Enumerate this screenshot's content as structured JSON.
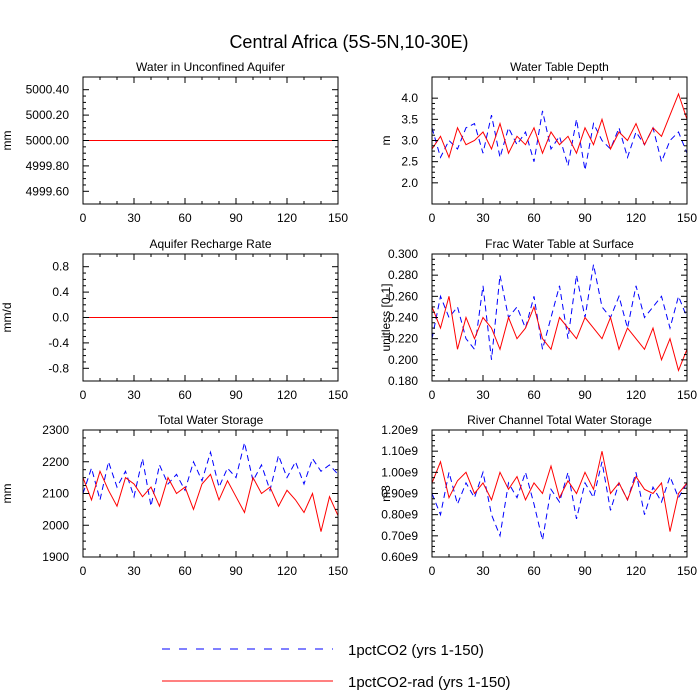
{
  "title": "Central Africa (5S-5N,10-30E)",
  "colors": {
    "series_a": "#0000ff",
    "series_b": "#ff0000"
  },
  "legend": {
    "placement": "bottom-center",
    "items": [
      {
        "label": "1pctCO2 (yrs 1-150)",
        "color": "#0000ff",
        "style": "dashed"
      },
      {
        "label": "1pctCO2-rad (yrs 1-150)",
        "color": "#ff0000",
        "style": "solid"
      }
    ]
  },
  "chart_data": [
    {
      "type": "line",
      "title": "Water in Unconfined Aquifer",
      "ylabel": "mm",
      "xlim": [
        0,
        150
      ],
      "ylim": [
        4999.5,
        5000.5
      ],
      "xticks": [
        0,
        30,
        60,
        90,
        120,
        150
      ],
      "yticks": [
        4999.6,
        4999.8,
        5000.0,
        5000.2,
        5000.4
      ],
      "ytick_labels": [
        "4999.60",
        "4999.80",
        "5000.00",
        "5000.20",
        "5000.40"
      ],
      "series": [
        {
          "name": "1pctCO2 (yrs 1-150)",
          "style": "dashed",
          "color": "#0000ff",
          "constant": 5000.0
        },
        {
          "name": "1pctCO2-rad (yrs 1-150)",
          "style": "solid",
          "color": "#ff0000",
          "constant": 5000.0
        }
      ]
    },
    {
      "type": "line",
      "title": "Water Table Depth",
      "ylabel": "m",
      "xlim": [
        0,
        150
      ],
      "ylim": [
        1.5,
        4.5
      ],
      "xticks": [
        0,
        30,
        60,
        90,
        120,
        150
      ],
      "yticks": [
        2.0,
        2.5,
        3.0,
        3.5,
        4.0
      ],
      "ytick_labels": [
        "2.0",
        "2.5",
        "3.0",
        "3.5",
        "4.0"
      ],
      "series": [
        {
          "name": "1pctCO2 (yrs 1-150)",
          "style": "dashed",
          "color": "#0000ff",
          "x": [
            0,
            5,
            10,
            15,
            20,
            25,
            30,
            35,
            40,
            45,
            50,
            55,
            60,
            65,
            70,
            75,
            80,
            85,
            90,
            95,
            100,
            105,
            110,
            115,
            120,
            125,
            130,
            135,
            140,
            145,
            150
          ],
          "y": [
            3.3,
            2.6,
            3.0,
            2.8,
            3.3,
            3.4,
            2.7,
            3.6,
            2.6,
            3.3,
            2.9,
            3.2,
            2.5,
            3.7,
            2.8,
            3.1,
            2.4,
            3.5,
            2.3,
            3.4,
            3.0,
            2.8,
            3.3,
            2.6,
            3.2,
            2.9,
            3.3,
            2.5,
            3.0,
            3.2,
            2.7
          ]
        },
        {
          "name": "1pctCO2-rad (yrs 1-150)",
          "style": "solid",
          "color": "#ff0000",
          "x": [
            0,
            5,
            10,
            15,
            20,
            25,
            30,
            35,
            40,
            45,
            50,
            55,
            60,
            65,
            70,
            75,
            80,
            85,
            90,
            95,
            100,
            105,
            110,
            115,
            120,
            125,
            130,
            135,
            140,
            145,
            150
          ],
          "y": [
            2.8,
            3.1,
            2.6,
            3.3,
            2.9,
            3.0,
            3.2,
            2.8,
            3.4,
            2.7,
            3.1,
            2.9,
            3.3,
            2.7,
            3.2,
            2.9,
            3.1,
            2.7,
            3.3,
            2.9,
            3.5,
            2.8,
            3.2,
            3.0,
            3.4,
            2.9,
            3.3,
            3.1,
            3.6,
            4.1,
            3.5
          ]
        }
      ]
    },
    {
      "type": "line",
      "title": "Aquifer Recharge Rate",
      "ylabel": "mm/d",
      "xlim": [
        0,
        150
      ],
      "ylim": [
        -1.0,
        1.0
      ],
      "xticks": [
        0,
        30,
        60,
        90,
        120,
        150
      ],
      "yticks": [
        -0.8,
        -0.4,
        0.0,
        0.4,
        0.8
      ],
      "ytick_labels": [
        "-0.8",
        "-0.4",
        "0.0",
        "0.4",
        "0.8"
      ],
      "series": [
        {
          "name": "1pctCO2 (yrs 1-150)",
          "style": "dashed",
          "color": "#0000ff",
          "constant": 0.0
        },
        {
          "name": "1pctCO2-rad (yrs 1-150)",
          "style": "solid",
          "color": "#ff0000",
          "constant": 0.0
        }
      ]
    },
    {
      "type": "line",
      "title": "Frac Water Table at Surface",
      "ylabel": "unitless [0-1]",
      "xlim": [
        0,
        150
      ],
      "ylim": [
        0.18,
        0.3
      ],
      "xticks": [
        0,
        30,
        60,
        90,
        120,
        150
      ],
      "yticks": [
        0.18,
        0.2,
        0.22,
        0.24,
        0.26,
        0.28,
        0.3
      ],
      "ytick_labels": [
        "0.180",
        "0.200",
        "0.220",
        "0.240",
        "0.260",
        "0.280",
        "0.300"
      ],
      "series": [
        {
          "name": "1pctCO2 (yrs 1-150)",
          "style": "dashed",
          "color": "#0000ff",
          "x": [
            0,
            5,
            10,
            15,
            20,
            25,
            30,
            35,
            40,
            45,
            50,
            55,
            60,
            65,
            70,
            75,
            80,
            85,
            90,
            95,
            100,
            105,
            110,
            115,
            120,
            125,
            130,
            135,
            140,
            145,
            150
          ],
          "y": [
            0.22,
            0.26,
            0.24,
            0.25,
            0.22,
            0.21,
            0.27,
            0.2,
            0.28,
            0.24,
            0.25,
            0.23,
            0.26,
            0.21,
            0.24,
            0.27,
            0.22,
            0.28,
            0.24,
            0.29,
            0.25,
            0.24,
            0.26,
            0.23,
            0.27,
            0.24,
            0.25,
            0.26,
            0.23,
            0.26,
            0.24
          ]
        },
        {
          "name": "1pctCO2-rad (yrs 1-150)",
          "style": "solid",
          "color": "#ff0000",
          "x": [
            0,
            5,
            10,
            15,
            20,
            25,
            30,
            35,
            40,
            45,
            50,
            55,
            60,
            65,
            70,
            75,
            80,
            85,
            90,
            95,
            100,
            105,
            110,
            115,
            120,
            125,
            130,
            135,
            140,
            145,
            150
          ],
          "y": [
            0.25,
            0.23,
            0.26,
            0.21,
            0.24,
            0.22,
            0.24,
            0.23,
            0.21,
            0.24,
            0.22,
            0.23,
            0.25,
            0.22,
            0.21,
            0.24,
            0.23,
            0.22,
            0.24,
            0.23,
            0.22,
            0.24,
            0.21,
            0.23,
            0.22,
            0.21,
            0.23,
            0.2,
            0.22,
            0.19,
            0.21
          ]
        }
      ]
    },
    {
      "type": "line",
      "title": "Total Water Storage",
      "ylabel": "mm",
      "xlim": [
        0,
        150
      ],
      "ylim": [
        1900,
        2300
      ],
      "xticks": [
        0,
        30,
        60,
        90,
        120,
        150
      ],
      "yticks": [
        1900,
        2000,
        2100,
        2200,
        2300
      ],
      "ytick_labels": [
        "1900",
        "2000",
        "2100",
        "2200",
        "2300"
      ],
      "series": [
        {
          "name": "1pctCO2 (yrs 1-150)",
          "style": "dashed",
          "color": "#0000ff",
          "x": [
            0,
            5,
            10,
            15,
            20,
            25,
            30,
            35,
            40,
            45,
            50,
            55,
            60,
            65,
            70,
            75,
            80,
            85,
            90,
            95,
            100,
            105,
            110,
            115,
            120,
            125,
            130,
            135,
            140,
            145,
            150
          ],
          "y": [
            2100,
            2180,
            2080,
            2200,
            2120,
            2170,
            2090,
            2210,
            2060,
            2190,
            2130,
            2160,
            2110,
            2200,
            2140,
            2230,
            2120,
            2180,
            2150,
            2260,
            2140,
            2190,
            2110,
            2220,
            2150,
            2200,
            2130,
            2210,
            2170,
            2190,
            2160
          ]
        },
        {
          "name": "1pctCO2-rad (yrs 1-150)",
          "style": "solid",
          "color": "#ff0000",
          "x": [
            0,
            5,
            10,
            15,
            20,
            25,
            30,
            35,
            40,
            45,
            50,
            55,
            60,
            65,
            70,
            75,
            80,
            85,
            90,
            95,
            100,
            105,
            110,
            115,
            120,
            125,
            130,
            135,
            140,
            145,
            150
          ],
          "y": [
            2150,
            2080,
            2170,
            2110,
            2060,
            2150,
            2130,
            2090,
            2120,
            2060,
            2150,
            2100,
            2120,
            2050,
            2130,
            2160,
            2080,
            2140,
            2090,
            2040,
            2150,
            2100,
            2120,
            2060,
            2110,
            2080,
            2040,
            2100,
            1980,
            2090,
            2030
          ]
        }
      ]
    },
    {
      "type": "line",
      "title": "River Channel Total Water Storage",
      "ylabel": "m3",
      "xlim": [
        0,
        150
      ],
      "ylim": [
        600000000,
        1200000000
      ],
      "xticks": [
        0,
        30,
        60,
        90,
        120,
        150
      ],
      "yticks": [
        600000000,
        700000000,
        800000000,
        900000000,
        1000000000,
        1100000000,
        1200000000
      ],
      "ytick_labels": [
        "0.60e9",
        "0.70e9",
        "0.80e9",
        "0.90e9",
        "1.00e9",
        "1.10e9",
        "1.20e9"
      ],
      "series": [
        {
          "name": "1pctCO2 (yrs 1-150)",
          "style": "dashed",
          "color": "#0000ff",
          "x": [
            0,
            5,
            10,
            15,
            20,
            25,
            30,
            35,
            40,
            45,
            50,
            55,
            60,
            65,
            70,
            75,
            80,
            85,
            90,
            95,
            100,
            105,
            110,
            115,
            120,
            125,
            130,
            135,
            140,
            145,
            150
          ],
          "y": [
            900000000,
            800000000,
            1000000000,
            850000000,
            950000000,
            880000000,
            1000000000,
            800000000,
            700000000,
            950000000,
            880000000,
            1000000000,
            850000000,
            680000000,
            920000000,
            860000000,
            1000000000,
            780000000,
            950000000,
            880000000,
            1050000000,
            820000000,
            950000000,
            870000000,
            1000000000,
            800000000,
            930000000,
            860000000,
            980000000,
            880000000,
            950000000
          ]
        },
        {
          "name": "1pctCO2-rad (yrs 1-150)",
          "style": "solid",
          "color": "#ff0000",
          "x": [
            0,
            5,
            10,
            15,
            20,
            25,
            30,
            35,
            40,
            45,
            50,
            55,
            60,
            65,
            70,
            75,
            80,
            85,
            90,
            95,
            100,
            105,
            110,
            115,
            120,
            125,
            130,
            135,
            140,
            145,
            150
          ],
          "y": [
            950000000,
            1050000000,
            880000000,
            960000000,
            1000000000,
            900000000,
            950000000,
            870000000,
            1000000000,
            920000000,
            980000000,
            870000000,
            950000000,
            900000000,
            1030000000,
            880000000,
            960000000,
            900000000,
            1000000000,
            920000000,
            1100000000,
            900000000,
            950000000,
            870000000,
            980000000,
            920000000,
            900000000,
            950000000,
            720000000,
            900000000,
            950000000
          ]
        }
      ]
    }
  ]
}
